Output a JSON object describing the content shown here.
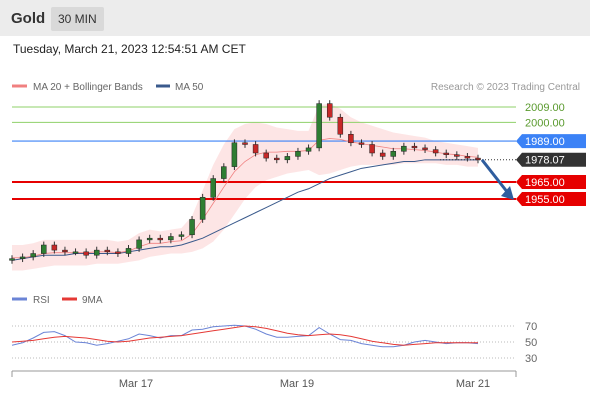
{
  "header": {
    "title": "Gold",
    "timeframe": "30 MIN"
  },
  "timestamp": "Tuesday, March 21, 2023 12:54:51 AM CET",
  "legend": {
    "items": [
      {
        "label": "MA 20 + Bollinger Bands",
        "color": "#f08080"
      },
      {
        "label": "MA 50",
        "color": "#3a5a8c"
      }
    ],
    "credit": "Research © 2023 Trading Central"
  },
  "colors": {
    "resistance_line": "#3b82f6",
    "support_line": "#e60000",
    "target_line": "#8fd16a",
    "candle_up": "#2e7d32",
    "candle_down": "#c62828",
    "bollinger_fill": "#fde2e2",
    "rsi_line": "#6b84d6",
    "rsi_ma_line": "#e53935",
    "arrow": "#2f5d9e"
  },
  "price_levels": [
    {
      "value": "2009.00",
      "kind": "target"
    },
    {
      "value": "2000.00",
      "kind": "target"
    },
    {
      "value": "1989.00",
      "kind": "resistance"
    },
    {
      "value": "1978.07",
      "kind": "current"
    },
    {
      "value": "1965.00",
      "kind": "support"
    },
    {
      "value": "1955.00",
      "kind": "support"
    }
  ],
  "rsi_panel": {
    "legend": [
      {
        "label": "RSI",
        "color": "#6b84d6"
      },
      {
        "label": "9MA",
        "color": "#e53935"
      }
    ],
    "levels": [
      "70",
      "50",
      "30"
    ]
  },
  "x_axis": {
    "labels": [
      "Mar 17",
      "Mar 19",
      "Mar 21"
    ]
  },
  "chart_data": {
    "type": "line",
    "title": "Gold",
    "timeframe": "30 MIN",
    "y_range": [
      1908,
      2017
    ],
    "series": [
      {
        "name": "Gold",
        "x": [
          0,
          1,
          2,
          3,
          4,
          5,
          6,
          7,
          8,
          9,
          10,
          11,
          12,
          13,
          14,
          15,
          16,
          17,
          18,
          19,
          20,
          21,
          22,
          23,
          24,
          25,
          26,
          27,
          28,
          29,
          30,
          31,
          32,
          33,
          34,
          35,
          36,
          37,
          38,
          39,
          40,
          41,
          42,
          43,
          44
        ],
        "values": [
          1920,
          1921,
          1923,
          1928,
          1925,
          1924,
          1924,
          1922,
          1925,
          1924,
          1923,
          1926,
          1931,
          1932,
          1931,
          1933,
          1934,
          1943,
          1956,
          1967,
          1974,
          1988,
          1987,
          1982,
          1979,
          1978,
          1980,
          1983,
          1985,
          2011,
          2003,
          1993,
          1988,
          1987,
          1982,
          1980,
          1983,
          1986,
          1985,
          1984,
          1982,
          1981,
          1980,
          1979,
          1978
        ]
      }
    ],
    "ma50": [
      1919,
      1920,
      1921,
      1922,
      1922,
      1922,
      1923,
      1923,
      1923,
      1923,
      1923,
      1924,
      1925,
      1926,
      1927,
      1927,
      1928,
      1930,
      1932,
      1935,
      1938,
      1941,
      1944,
      1947,
      1950,
      1953,
      1956,
      1959,
      1961,
      1964,
      1967,
      1969,
      1971,
      1973,
      1974,
      1975,
      1976,
      1977,
      1977,
      1978,
      1978,
      1978,
      1978,
      1978,
      1978
    ],
    "bollinger_upper": [
      1928,
      1928,
      1929,
      1931,
      1931,
      1931,
      1931,
      1931,
      1931,
      1931,
      1930,
      1931,
      1935,
      1937,
      1936,
      1937,
      1938,
      1945,
      1960,
      1975,
      1987,
      1996,
      1999,
      2000,
      1999,
      1997,
      1996,
      1995,
      1995,
      2010,
      2011,
      2008,
      2003,
      2000,
      1998,
      1996,
      1994,
      1993,
      1992,
      1991,
      1989,
      1988,
      1987,
      1986,
      1985
    ],
    "bollinger_lower": [
      1913,
      1913,
      1914,
      1915,
      1916,
      1916,
      1916,
      1916,
      1917,
      1917,
      1917,
      1918,
      1919,
      1921,
      1922,
      1923,
      1923,
      1924,
      1926,
      1930,
      1937,
      1946,
      1955,
      1962,
      1966,
      1968,
      1970,
      1971,
      1972,
      1969,
      1970,
      1972,
      1974,
      1975,
      1975,
      1975,
      1975,
      1976,
      1976,
      1976,
      1976,
      1975,
      1975,
      1974,
      1974
    ],
    "projection": {
      "from": 1978,
      "to": 1955
    },
    "rsi": {
      "y_range": [
        20,
        80
      ],
      "rsi": [
        46,
        49,
        55,
        62,
        63,
        58,
        50,
        49,
        46,
        48,
        51,
        54,
        60,
        58,
        55,
        58,
        58,
        65,
        66,
        69,
        70,
        71,
        70,
        66,
        60,
        56,
        56,
        57,
        58,
        68,
        60,
        53,
        52,
        48,
        46,
        44,
        44,
        46,
        50,
        52,
        50,
        48,
        49,
        49,
        48
      ],
      "ma9": [
        50,
        51,
        52,
        54,
        56,
        57,
        56,
        55,
        53,
        51,
        50,
        51,
        53,
        55,
        56,
        57,
        58,
        60,
        62,
        64,
        66,
        68,
        70,
        69,
        67,
        64,
        61,
        59,
        58,
        59,
        60,
        59,
        57,
        54,
        51,
        49,
        47,
        46,
        47,
        48,
        49,
        49,
        49,
        49,
        49
      ]
    }
  }
}
